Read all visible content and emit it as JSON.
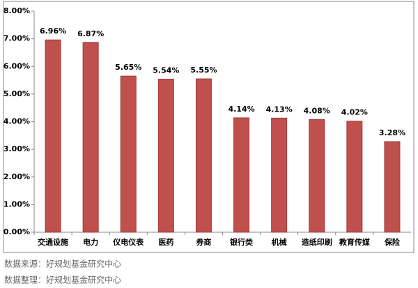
{
  "chart_data": {
    "type": "bar",
    "categories": [
      "交通设施",
      "电力",
      "仪电仪表",
      "医药",
      "券商",
      "银行类",
      "机械",
      "造纸印刷",
      "教育传媒",
      "保险"
    ],
    "values": [
      6.96,
      6.87,
      5.65,
      5.54,
      5.55,
      4.14,
      4.13,
      4.08,
      4.02,
      3.28
    ],
    "value_labels": [
      "6.96%",
      "6.87%",
      "5.65%",
      "5.54%",
      "5.55%",
      "4.14%",
      "4.13%",
      "4.08%",
      "4.02%",
      "3.28%"
    ],
    "color": "#c0504d",
    "ylim": [
      0,
      8
    ],
    "yticks": [
      {
        "value": 0,
        "label": "0.00%"
      },
      {
        "value": 1,
        "label": "1.00%"
      },
      {
        "value": 2,
        "label": "2.00%"
      },
      {
        "value": 3,
        "label": "3.00%"
      },
      {
        "value": 4,
        "label": "4.00%"
      },
      {
        "value": 5,
        "label": "5.00%"
      },
      {
        "value": 6,
        "label": "6.00%"
      },
      {
        "value": 7,
        "label": "7.00%"
      },
      {
        "value": 8,
        "label": "8.00%"
      }
    ],
    "grid": false
  },
  "notes": [
    "数据来源：好规划基金研究中心",
    "数据整理：好规划基金研究中心"
  ]
}
